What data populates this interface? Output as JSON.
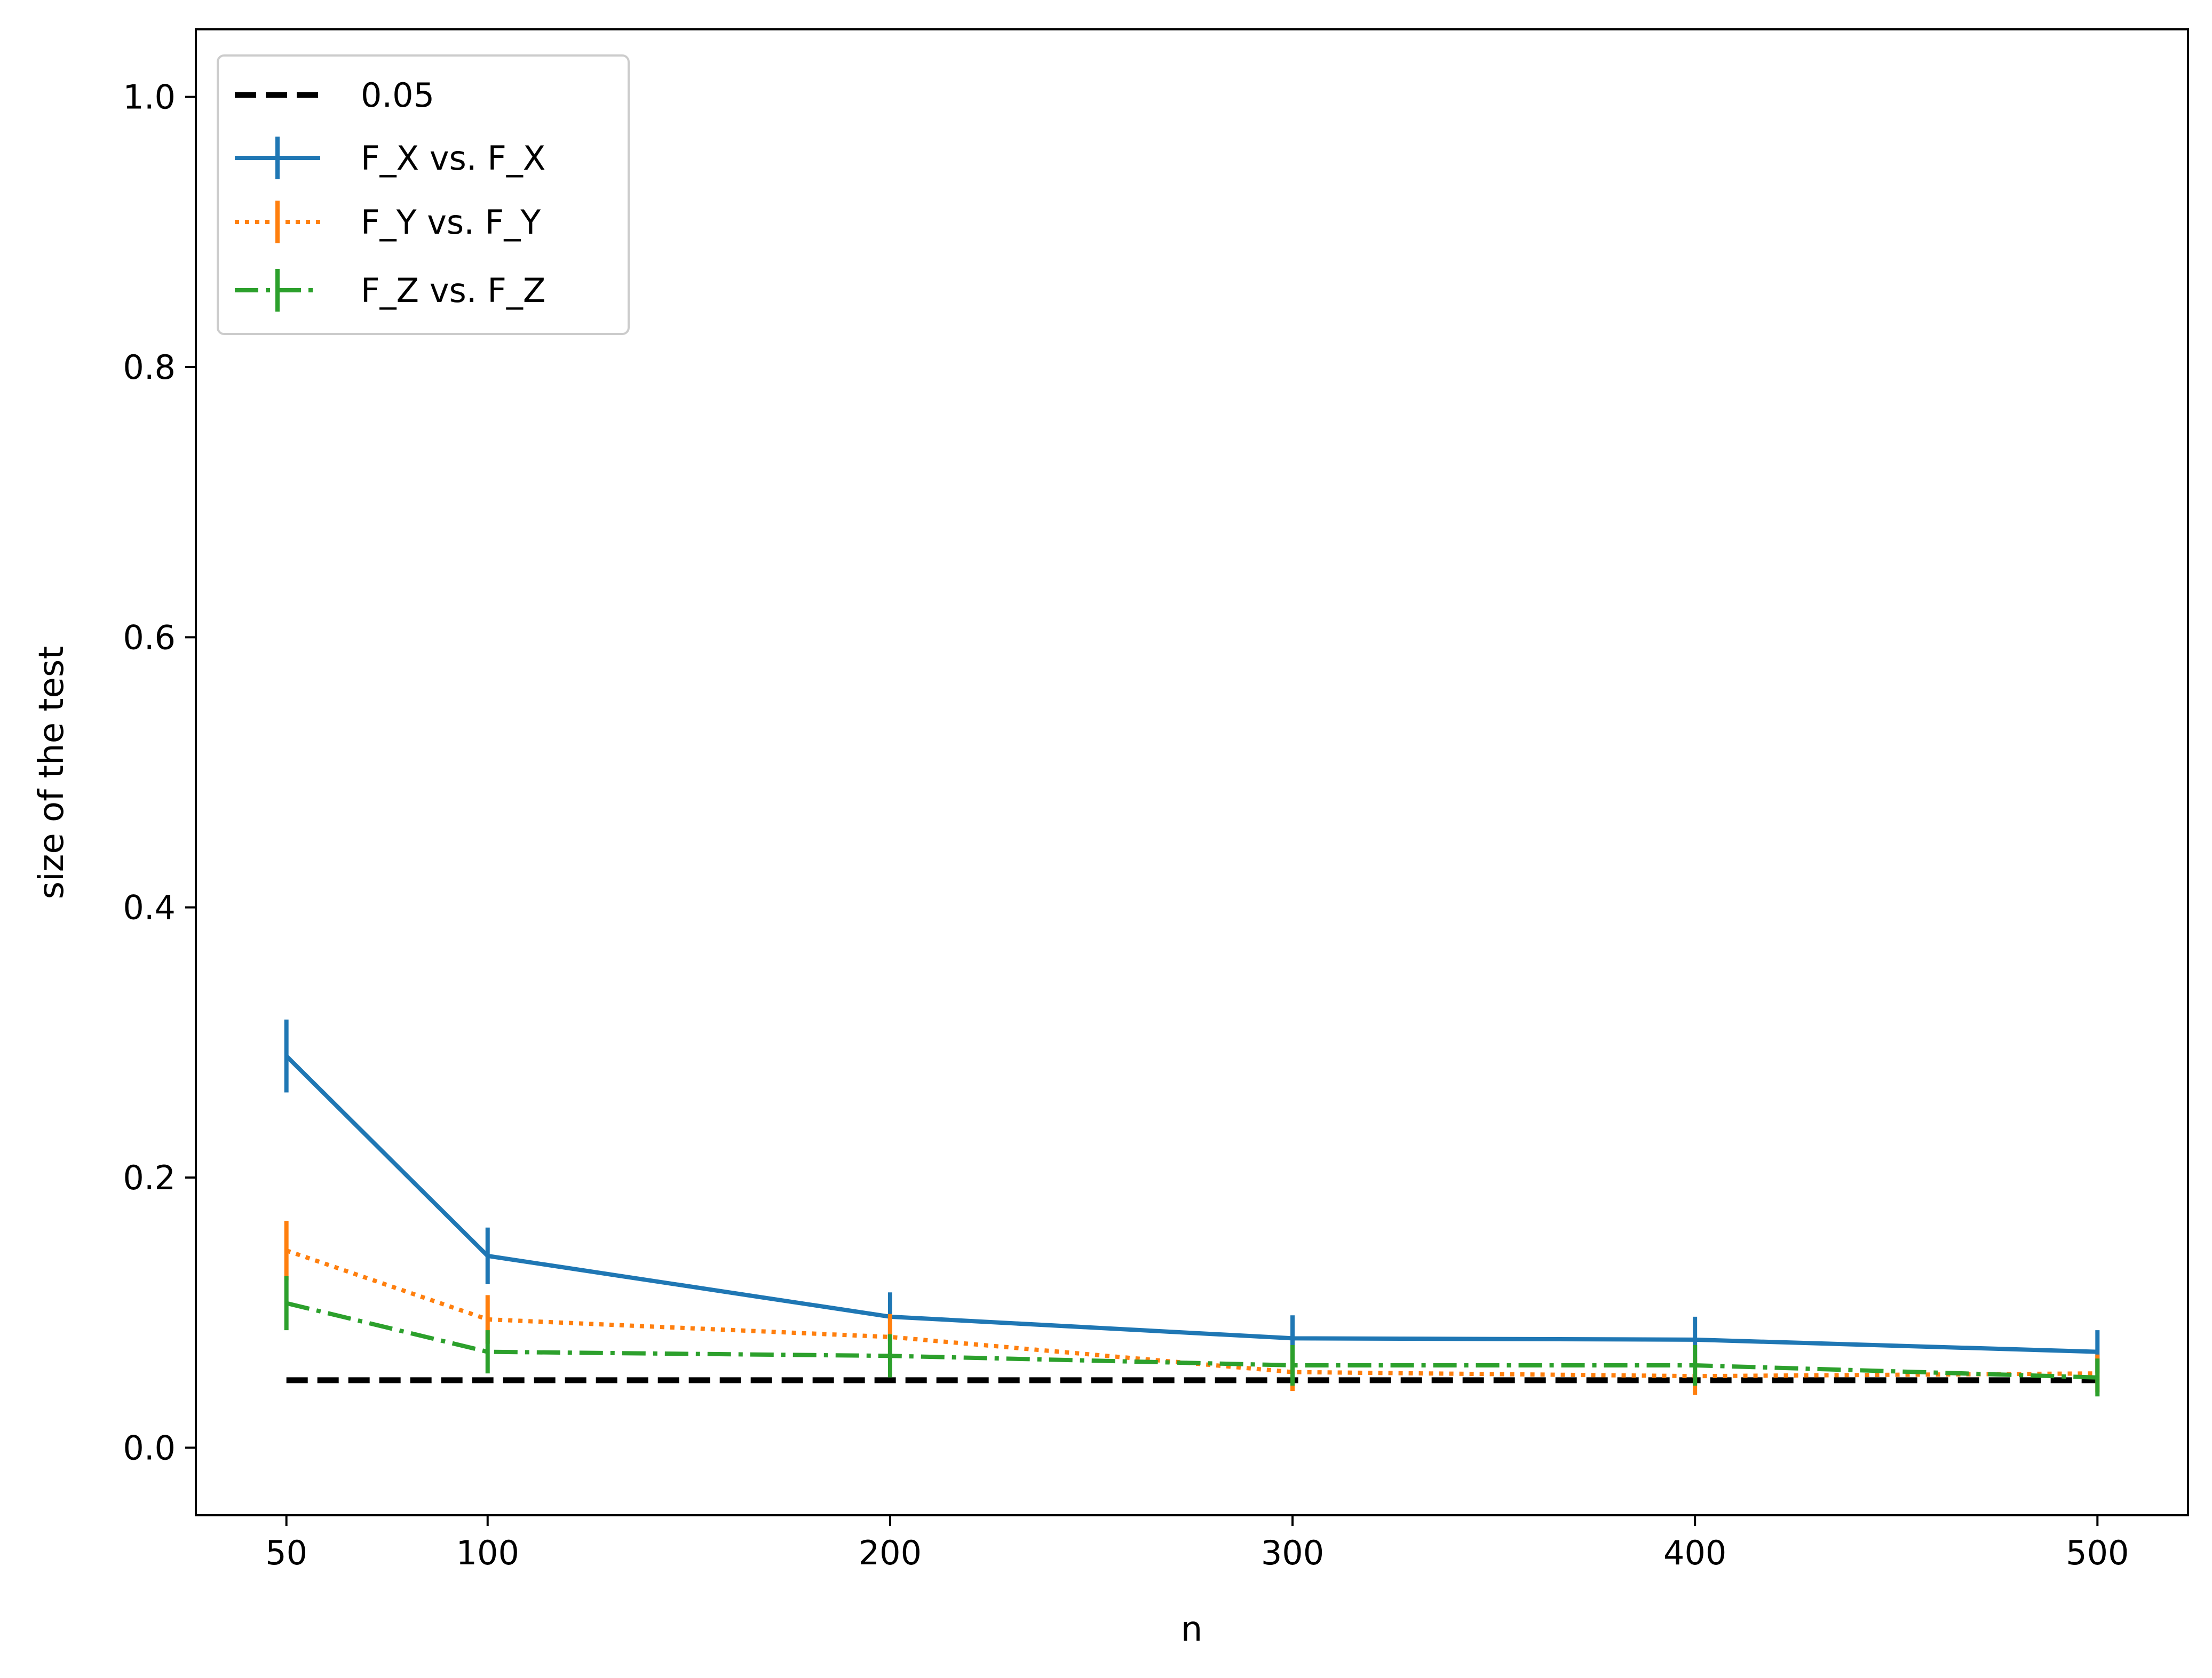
{
  "chart_data": {
    "type": "line",
    "title": "",
    "xlabel": "n",
    "ylabel": "size of the test",
    "xlim": [
      27.5,
      522.5
    ],
    "ylim": [
      -0.05,
      1.05
    ],
    "x": [
      50,
      100,
      200,
      300,
      400,
      500
    ],
    "x_ticks": [
      50,
      100,
      200,
      300,
      400,
      500
    ],
    "x_tick_labels": [
      "50",
      "100",
      "200",
      "300",
      "400",
      "500"
    ],
    "y_ticks": [
      0.0,
      0.2,
      0.4,
      0.6,
      0.8,
      1.0
    ],
    "y_tick_labels": [
      "0.0",
      "0.2",
      "0.4",
      "0.6",
      "0.8",
      "1.0"
    ],
    "grid": false,
    "legend_position": "upper-left",
    "reference_line": {
      "name": "0.05",
      "value": 0.05,
      "color": "#000000",
      "style": "dashed"
    },
    "series": [
      {
        "name": "F_X vs. F_X",
        "color": "#1f77b4",
        "style": "solid",
        "values": [
          0.29,
          0.142,
          0.097,
          0.081,
          0.08,
          0.071
        ],
        "errors": [
          0.027,
          0.021,
          0.018,
          0.017,
          0.017,
          0.016
        ]
      },
      {
        "name": "F_Y vs. F_Y",
        "color": "#ff7f0e",
        "style": "dotted",
        "values": [
          0.146,
          0.095,
          0.082,
          0.056,
          0.053,
          0.055
        ],
        "errors": [
          0.022,
          0.018,
          0.017,
          0.014,
          0.014,
          0.014
        ]
      },
      {
        "name": "F_Z vs. F_Z",
        "color": "#2ca02c",
        "style": "dashdot",
        "values": [
          0.107,
          0.071,
          0.068,
          0.061,
          0.061,
          0.052
        ],
        "errors": [
          0.02,
          0.016,
          0.016,
          0.015,
          0.015,
          0.014
        ]
      }
    ]
  }
}
